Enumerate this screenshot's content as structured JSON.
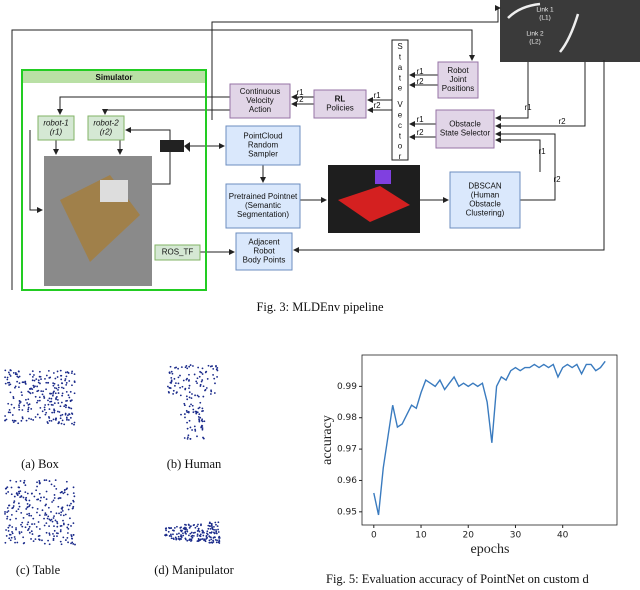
{
  "diagram": {
    "nodes": [
      {
        "lines": [
          "Simulator"
        ]
      },
      {
        "lines": [
          "robot-1",
          "(r1)"
        ]
      },
      {
        "lines": [
          "robot-2",
          "(r2)"
        ]
      },
      {
        "lines": [
          "Continuous",
          "Velocity",
          "Action"
        ]
      },
      {
        "lines": [
          "RL",
          "Policies"
        ]
      },
      {
        "lines": [
          "S",
          "t",
          "a",
          "t",
          "e",
          "V",
          "e",
          "c",
          "t",
          "o",
          "r"
        ]
      },
      {
        "lines": [
          "Robot",
          "Joint",
          "Positions"
        ]
      },
      {
        "lines": [
          "Obstacle",
          "State Selector"
        ]
      },
      {
        "lines": [
          "PointCloud",
          "Random",
          "Sampler"
        ]
      },
      {
        "lines": [
          "Pretrained Pointnet",
          "(Semantic",
          "Segmentation)"
        ]
      },
      {
        "lines": [
          "DBSCAN",
          "(Human",
          "Obstacle",
          "Clustering)"
        ]
      },
      {
        "lines": [
          "Adjacent",
          "Robot",
          "Body Points"
        ]
      },
      {
        "lines": [
          "ROS_TF"
        ]
      }
    ],
    "edge_labels": [
      "r1",
      "r2",
      "r1",
      "r2",
      "r1",
      "r2",
      "r1",
      "r2",
      "r1",
      "r2",
      "r1",
      "r2"
    ],
    "render_labels": [
      [
        "Link 1",
        "(L1)"
      ],
      [
        "Link 2",
        "(L2)"
      ]
    ],
    "caption": "Fig. 3: MLDEnv pipeline"
  },
  "objects": {
    "captions": [
      "(a) Box",
      "(b) Human",
      "(c) Table",
      "(d) Manipulator"
    ]
  },
  "chart_data": {
    "type": "line",
    "x_label": "epochs",
    "y_label": "accuracy",
    "caption": "Fig. 5: Evaluation accuracy of PointNet on custom d",
    "x": [
      0,
      1,
      2,
      3,
      4,
      5,
      6,
      7,
      8,
      9,
      10,
      11,
      12,
      13,
      14,
      15,
      16,
      17,
      18,
      19,
      20,
      21,
      22,
      23,
      24,
      25,
      26,
      27,
      28,
      29,
      30,
      31,
      32,
      33,
      34,
      35,
      36,
      37,
      38,
      39,
      40,
      41,
      42,
      43,
      44,
      45,
      46,
      47,
      48,
      49
    ],
    "series": [
      {
        "color": "#3a7bbf",
        "values": [
          0.956,
          0.949,
          0.964,
          0.974,
          0.984,
          0.977,
          0.978,
          0.981,
          0.984,
          0.983,
          0.988,
          0.992,
          0.991,
          0.99,
          0.992,
          0.989,
          0.991,
          0.993,
          0.99,
          0.991,
          0.99,
          0.991,
          0.99,
          0.991,
          0.985,
          0.972,
          0.99,
          0.993,
          0.992,
          0.995,
          0.996,
          0.995,
          0.996,
          0.996,
          0.997,
          0.996,
          0.997,
          0.996,
          0.997,
          0.993,
          0.996,
          0.997,
          0.996,
          0.997,
          0.994,
          0.997,
          0.997,
          0.995,
          0.996,
          0.998
        ]
      }
    ],
    "xlim": [
      -2.5,
      51.5
    ],
    "ylim": [
      0.9458,
      1.0
    ],
    "xticks": [
      0,
      10,
      20,
      30,
      40
    ],
    "yticks": [
      0.95,
      0.96,
      0.97,
      0.98,
      0.99
    ]
  }
}
